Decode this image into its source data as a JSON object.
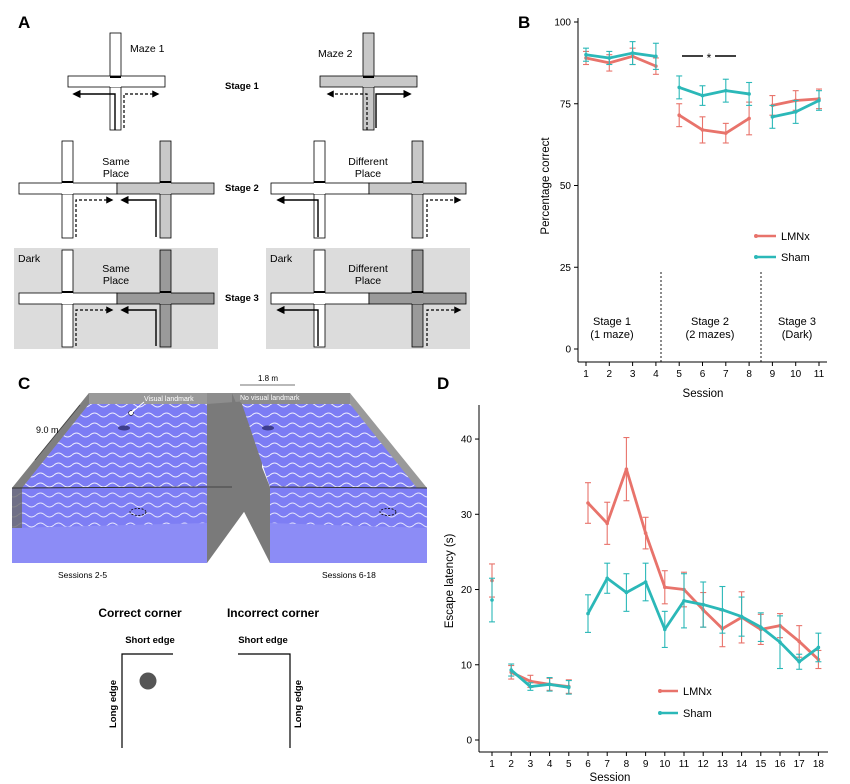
{
  "panels": {
    "A": {
      "letter": "A",
      "maze1_label": "Maze 1",
      "maze2_label": "Maze 2",
      "stage1": "Stage 1",
      "stage2": "Stage 2",
      "stage3": "Stage 3",
      "same_place": [
        "Same",
        "Place"
      ],
      "different_place": [
        "Different",
        "Place"
      ],
      "dark": "Dark"
    },
    "B": {
      "letter": "B",
      "stage_labels": [
        [
          "Stage 1",
          "(1 maze)"
        ],
        [
          "Stage 2",
          "(2 mazes)"
        ],
        [
          "Stage 3",
          "(Dark)"
        ]
      ],
      "significance": "*"
    },
    "C": {
      "letter": "C",
      "length_label": "9.0 m",
      "width_label": "1.8 m",
      "visual_landmark": "Visual landmark",
      "no_visual_landmark": "No visual landmark",
      "sessions_left": "Sessions 2-5",
      "sessions_right": "Sessions 6-18",
      "correct_corner": "Correct corner",
      "incorrect_corner": "Incorrect corner",
      "short_edge": "Short edge",
      "long_edge": "Long edge"
    },
    "D": {
      "letter": "D"
    }
  },
  "colors": {
    "lmnx": "#e8736b",
    "sham": "#2bb8b8"
  },
  "chart_data": [
    {
      "id": "B",
      "type": "line",
      "xlabel": "Session",
      "ylabel": "Percentage correct",
      "ylim": [
        0,
        100
      ],
      "yticks": [
        0,
        25,
        50,
        75,
        100
      ],
      "xticks": [
        1,
        2,
        3,
        4,
        5,
        6,
        7,
        8,
        9,
        10,
        11
      ],
      "segments": [
        [
          1,
          4
        ],
        [
          5,
          8
        ],
        [
          9,
          11
        ]
      ],
      "series": [
        {
          "name": "LMNx",
          "x": [
            1,
            2,
            3,
            4,
            5,
            6,
            7,
            8,
            9,
            10,
            11
          ],
          "values": [
            89,
            87.5,
            89.5,
            86.5,
            71.5,
            67,
            66,
            70.5,
            74.5,
            76,
            76.5
          ],
          "errors": [
            2,
            2.5,
            2.5,
            2.5,
            3.5,
            4,
            3,
            5,
            3,
            3,
            3
          ]
        },
        {
          "name": "Sham",
          "x": [
            1,
            2,
            3,
            4,
            5,
            6,
            7,
            8,
            9,
            10,
            11
          ],
          "values": [
            90,
            89,
            90.5,
            89.5,
            80,
            77.5,
            79,
            78,
            71,
            72.5,
            76
          ],
          "errors": [
            2,
            2,
            3.5,
            4,
            3.5,
            3,
            3.5,
            3.5,
            3.5,
            3.5,
            3
          ]
        }
      ]
    },
    {
      "id": "D",
      "type": "line",
      "xlabel": "Session",
      "ylabel": "Escape latency (s)",
      "ylim": [
        0,
        42
      ],
      "yticks": [
        0,
        10,
        20,
        30,
        40
      ],
      "xticks": [
        1,
        2,
        3,
        4,
        5,
        6,
        7,
        8,
        9,
        10,
        11,
        12,
        13,
        14,
        15,
        16,
        17,
        18
      ],
      "segments": [
        [
          1,
          1
        ],
        [
          2,
          5
        ],
        [
          6,
          18
        ]
      ],
      "series": [
        {
          "name": "LMNx",
          "x": [
            1,
            2,
            3,
            4,
            5,
            6,
            7,
            8,
            9,
            10,
            11,
            12,
            13,
            14,
            15,
            16,
            17,
            18
          ],
          "values": [
            21.2,
            9.0,
            7.8,
            7.4,
            7.1,
            31.5,
            28.8,
            36.0,
            27.5,
            20.3,
            20.0,
            17.3,
            14.8,
            16.3,
            14.7,
            15.2,
            13.1,
            10.7
          ],
          "errors": [
            2.2,
            0.9,
            0.8,
            0.8,
            0.9,
            2.7,
            2.8,
            4.2,
            2.1,
            2.2,
            2.3,
            2.3,
            2.4,
            3.4,
            2.0,
            1.6,
            2.1,
            1.2
          ]
        },
        {
          "name": "Sham",
          "x": [
            1,
            2,
            3,
            4,
            5,
            6,
            7,
            8,
            9,
            10,
            11,
            12,
            13,
            14,
            15,
            16,
            17,
            18
          ],
          "values": [
            18.6,
            9.3,
            7.1,
            7.4,
            7.0,
            16.8,
            21.5,
            19.6,
            21.0,
            14.7,
            18.5,
            18.0,
            17.3,
            16.4,
            15.0,
            13.0,
            10.4,
            12.3
          ],
          "errors": [
            2.9,
            0.8,
            0.5,
            0.9,
            0.9,
            2.5,
            2.0,
            2.5,
            2.5,
            2.4,
            3.6,
            3.0,
            3.1,
            2.6,
            1.9,
            3.5,
            1.0,
            1.9
          ]
        }
      ]
    }
  ]
}
